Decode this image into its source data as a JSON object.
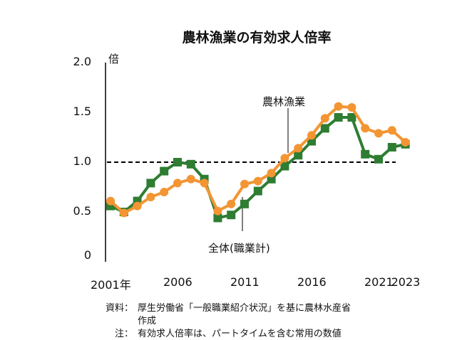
{
  "chart_data": {
    "type": "line",
    "title": "農林漁業の有効求人倍率",
    "ylabel": "倍",
    "ylim": [
      0,
      2.0
    ],
    "yticks": [
      "0",
      "0.5",
      "1.0",
      "1.5",
      "2.0"
    ],
    "xticks": [
      "2001年",
      "2006",
      "2011",
      "2016",
      "2021",
      "2023"
    ],
    "x": [
      2001,
      2002,
      2003,
      2004,
      2005,
      2006,
      2007,
      2008,
      2009,
      2010,
      2011,
      2012,
      2013,
      2014,
      2015,
      2016,
      2017,
      2018,
      2019,
      2020,
      2021,
      2022,
      2023
    ],
    "reference_line": 1.0,
    "series": [
      {
        "name": "全体(職業計)",
        "color": "#2e7d32",
        "marker": "square",
        "values": [
          0.56,
          0.5,
          0.61,
          0.79,
          0.91,
          1.0,
          0.98,
          0.83,
          0.44,
          0.47,
          0.58,
          0.71,
          0.83,
          0.96,
          1.07,
          1.21,
          1.34,
          1.45,
          1.45,
          1.08,
          1.03,
          1.15,
          1.18
        ]
      },
      {
        "name": "農林漁業",
        "color": "#f39533",
        "marker": "circle",
        "values": [
          0.61,
          0.49,
          0.56,
          0.65,
          0.7,
          0.79,
          0.83,
          0.79,
          0.51,
          0.58,
          0.78,
          0.81,
          0.89,
          1.04,
          1.14,
          1.27,
          1.44,
          1.56,
          1.55,
          1.34,
          1.29,
          1.32,
          1.2
        ]
      }
    ]
  },
  "notes": {
    "source_label": "資料：",
    "source_text": "厚生労働省「一般職業紹介状況」を基に農林水産省",
    "source_text2": "作成",
    "note_label": "注：",
    "note_text": "有効求人倍率は、パートタイムを含む常用の数値"
  }
}
